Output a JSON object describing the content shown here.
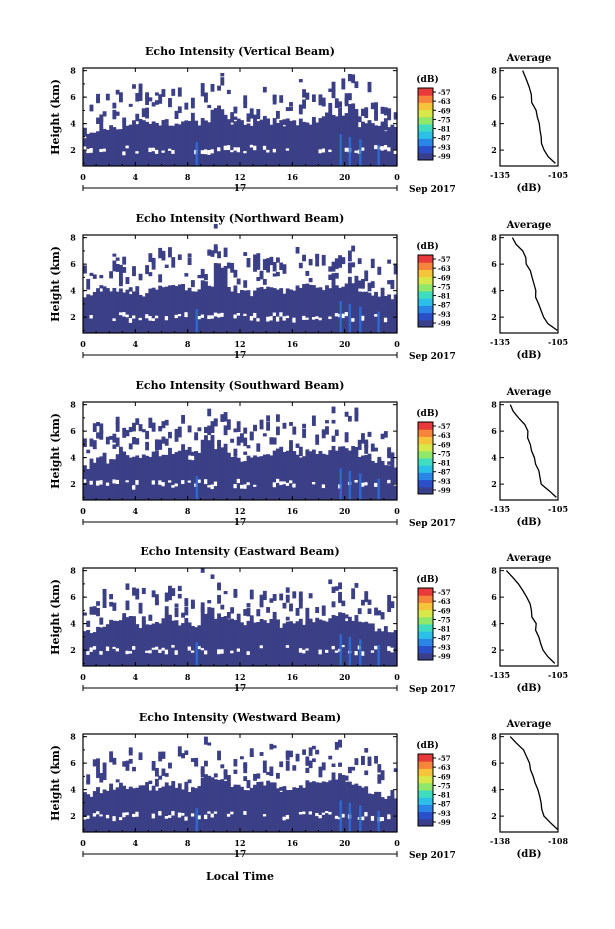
{
  "figure": {
    "xlabel": "Local Time",
    "date_label": "Sep 2017",
    "day_label": "17",
    "average_title": "Average",
    "average_xlabel": "(dB)",
    "colorbar_unit": "(dB)"
  },
  "colors": {
    "background_echo": "#3b3f86",
    "strong_echo": "#2f6fd8",
    "colorbar": [
      "#3a3f8c",
      "#2a4fc8",
      "#2a86e6",
      "#2cbfe8",
      "#3fdcc0",
      "#8fe86a",
      "#d8e84a",
      "#f6c43a",
      "#f6843a",
      "#e83a3a"
    ]
  },
  "chart_data": [
    {
      "type": "heatmap",
      "title": "Echo Intensity (Vertical Beam)",
      "ylabel": "Height (km)",
      "x_ticks": [
        "0",
        "4",
        "8",
        "12",
        "16",
        "20",
        "0"
      ],
      "xlim": [
        0,
        24
      ],
      "y_ticks": [
        "2",
        "4",
        "6",
        "8"
      ],
      "ylim": [
        0.8,
        8.2
      ],
      "colorbar_ticks": [
        "-57",
        "-63",
        "-69",
        "-75",
        "-81",
        "-87",
        "-93",
        "-99"
      ],
      "echo_top_km": [
        5.0,
        5.3,
        5.6,
        5.8,
        5.9,
        5.7,
        5.8,
        6.0,
        5.9,
        6.2,
        6.7,
        6.0,
        5.9,
        6.1,
        6.0,
        5.8,
        5.9,
        6.0,
        6.4,
        6.3,
        6.8,
        5.8,
        5.6,
        5.5
      ],
      "average": {
        "title": "Average",
        "xticks": [
          "-135",
          "-105"
        ],
        "yticks": [
          "2",
          "4",
          "6",
          "8"
        ],
        "xlim": [
          -135,
          -105
        ],
        "height_km": [
          8.0,
          7.4,
          6.8,
          6.2,
          5.6,
          5.0,
          4.5,
          4.0,
          3.5,
          3.0,
          2.5,
          2.0,
          1.5,
          1.0
        ],
        "value_db": [
          -124,
          -121,
          -120,
          -119,
          -118,
          -117,
          -116,
          -115,
          -115,
          -114,
          -113,
          -112,
          -110,
          -106
        ]
      }
    },
    {
      "type": "heatmap",
      "title": "Echo Intensity (Northward Beam)",
      "ylabel": "Height (km)",
      "x_ticks": [
        "0",
        "4",
        "8",
        "12",
        "16",
        "20",
        "0"
      ],
      "xlim": [
        0,
        24
      ],
      "y_ticks": [
        "2",
        "4",
        "6",
        "8"
      ],
      "ylim": [
        0.8,
        8.2
      ],
      "colorbar_ticks": [
        "-57",
        "-63",
        "-69",
        "-75",
        "-81",
        "-87",
        "-93",
        "-99"
      ],
      "echo_top_km": [
        5.5,
        5.8,
        6.0,
        5.6,
        5.4,
        5.9,
        6.2,
        6.0,
        5.8,
        6.4,
        7.6,
        5.9,
        5.6,
        5.8,
        6.0,
        5.7,
        5.9,
        6.2,
        6.0,
        6.3,
        6.6,
        5.8,
        5.5,
        5.4
      ],
      "average": {
        "title": "Average",
        "xticks": [
          "-135",
          "-105"
        ],
        "yticks": [
          "2",
          "4",
          "6",
          "8"
        ],
        "xlim": [
          -135,
          -105
        ],
        "height_km": [
          8.0,
          7.5,
          7.0,
          6.5,
          6.0,
          5.5,
          5.0,
          4.5,
          4.0,
          3.5,
          3.0,
          2.5,
          2.0,
          1.5,
          1.0
        ],
        "value_db": [
          -128,
          -126,
          -124,
          -122,
          -121,
          -120,
          -119,
          -118,
          -117,
          -116,
          -115,
          -114,
          -113,
          -110,
          -106
        ]
      }
    },
    {
      "type": "heatmap",
      "title": "Echo Intensity (Southward Beam)",
      "ylabel": "Height (km)",
      "x_ticks": [
        "0",
        "4",
        "8",
        "12",
        "16",
        "20",
        "0"
      ],
      "xlim": [
        0,
        24
      ],
      "y_ticks": [
        "2",
        "4",
        "6",
        "8"
      ],
      "ylim": [
        0.8,
        8.2
      ],
      "colorbar_ticks": [
        "-57",
        "-63",
        "-69",
        "-75",
        "-81",
        "-87",
        "-93",
        "-99"
      ],
      "echo_top_km": [
        5.2,
        5.6,
        5.9,
        6.0,
        5.8,
        6.1,
        6.3,
        6.1,
        5.9,
        7.4,
        6.6,
        5.9,
        5.7,
        6.0,
        6.2,
        5.8,
        6.0,
        6.3,
        6.2,
        6.5,
        6.4,
        5.8,
        5.4,
        5.3
      ],
      "average": {
        "title": "Average",
        "xticks": [
          "-135",
          "-105"
        ],
        "yticks": [
          "2",
          "4",
          "6",
          "8"
        ],
        "xlim": [
          -135,
          -105
        ],
        "height_km": [
          8.0,
          7.5,
          7.0,
          6.5,
          6.0,
          5.5,
          5.0,
          4.5,
          4.0,
          3.5,
          3.0,
          2.5,
          2.0,
          1.5,
          1.0
        ],
        "value_db": [
          -130,
          -128,
          -125,
          -122,
          -121,
          -120,
          -119,
          -118,
          -117,
          -116,
          -115,
          -114,
          -113,
          -110,
          -106
        ]
      }
    },
    {
      "type": "heatmap",
      "title": "Echo Intensity (Eastward Beam)",
      "ylabel": "Height (km)",
      "x_ticks": [
        "0",
        "4",
        "8",
        "12",
        "16",
        "20",
        "0"
      ],
      "xlim": [
        0,
        24
      ],
      "y_ticks": [
        "2",
        "4",
        "6",
        "8"
      ],
      "ylim": [
        0.8,
        8.2
      ],
      "colorbar_ticks": [
        "-57",
        "-63",
        "-69",
        "-75",
        "-81",
        "-87",
        "-93",
        "-99"
      ],
      "echo_top_km": [
        5.0,
        5.4,
        5.8,
        6.0,
        5.7,
        5.9,
        6.2,
        5.9,
        5.6,
        6.8,
        6.3,
        6.0,
        5.8,
        6.1,
        6.0,
        5.7,
        6.0,
        6.2,
        6.1,
        6.4,
        6.2,
        5.7,
        5.4,
        5.2
      ],
      "average": {
        "title": "Average",
        "xticks": [
          "-135",
          "-105"
        ],
        "yticks": [
          "2",
          "4",
          "6",
          "8"
        ],
        "xlim": [
          -135,
          -105
        ],
        "height_km": [
          8.0,
          7.5,
          7.0,
          6.5,
          6.0,
          5.5,
          5.0,
          4.5,
          4.0,
          3.5,
          3.0,
          2.5,
          2.0,
          1.5,
          1.0
        ],
        "value_db": [
          -131,
          -129,
          -126,
          -123,
          -121,
          -120,
          -119,
          -118,
          -117,
          -116,
          -115,
          -114,
          -113,
          -110,
          -106
        ]
      }
    },
    {
      "type": "heatmap",
      "title": "Echo Intensity (Westward Beam)",
      "ylabel": "Height (km)",
      "x_ticks": [
        "0",
        "4",
        "8",
        "12",
        "16",
        "20",
        "0"
      ],
      "xlim": [
        0,
        24
      ],
      "y_ticks": [
        "2",
        "4",
        "6",
        "8"
      ],
      "ylim": [
        0.8,
        8.2
      ],
      "colorbar_ticks": [
        "-57",
        "-63",
        "-69",
        "-75",
        "-81",
        "-87",
        "-93",
        "-99"
      ],
      "echo_top_km": [
        5.4,
        5.7,
        5.9,
        5.8,
        5.6,
        6.0,
        6.3,
        6.1,
        5.9,
        6.9,
        6.5,
        6.0,
        5.7,
        6.0,
        6.2,
        5.8,
        5.9,
        6.3,
        6.2,
        6.6,
        6.4,
        5.8,
        5.5,
        5.3
      ],
      "average": {
        "title": "Average",
        "xticks": [
          "-138",
          "-108"
        ],
        "yticks": [
          "2",
          "4",
          "6",
          "8"
        ],
        "xlim": [
          -138,
          -108
        ],
        "height_km": [
          8.0,
          7.5,
          7.0,
          6.5,
          6.0,
          5.5,
          5.0,
          4.5,
          4.0,
          3.5,
          3.0,
          2.5,
          2.0,
          1.5,
          1.0
        ],
        "value_db": [
          -132,
          -129,
          -126,
          -124,
          -123,
          -122,
          -121,
          -120,
          -119,
          -118,
          -117,
          -116,
          -115,
          -112,
          -109
        ]
      }
    }
  ]
}
